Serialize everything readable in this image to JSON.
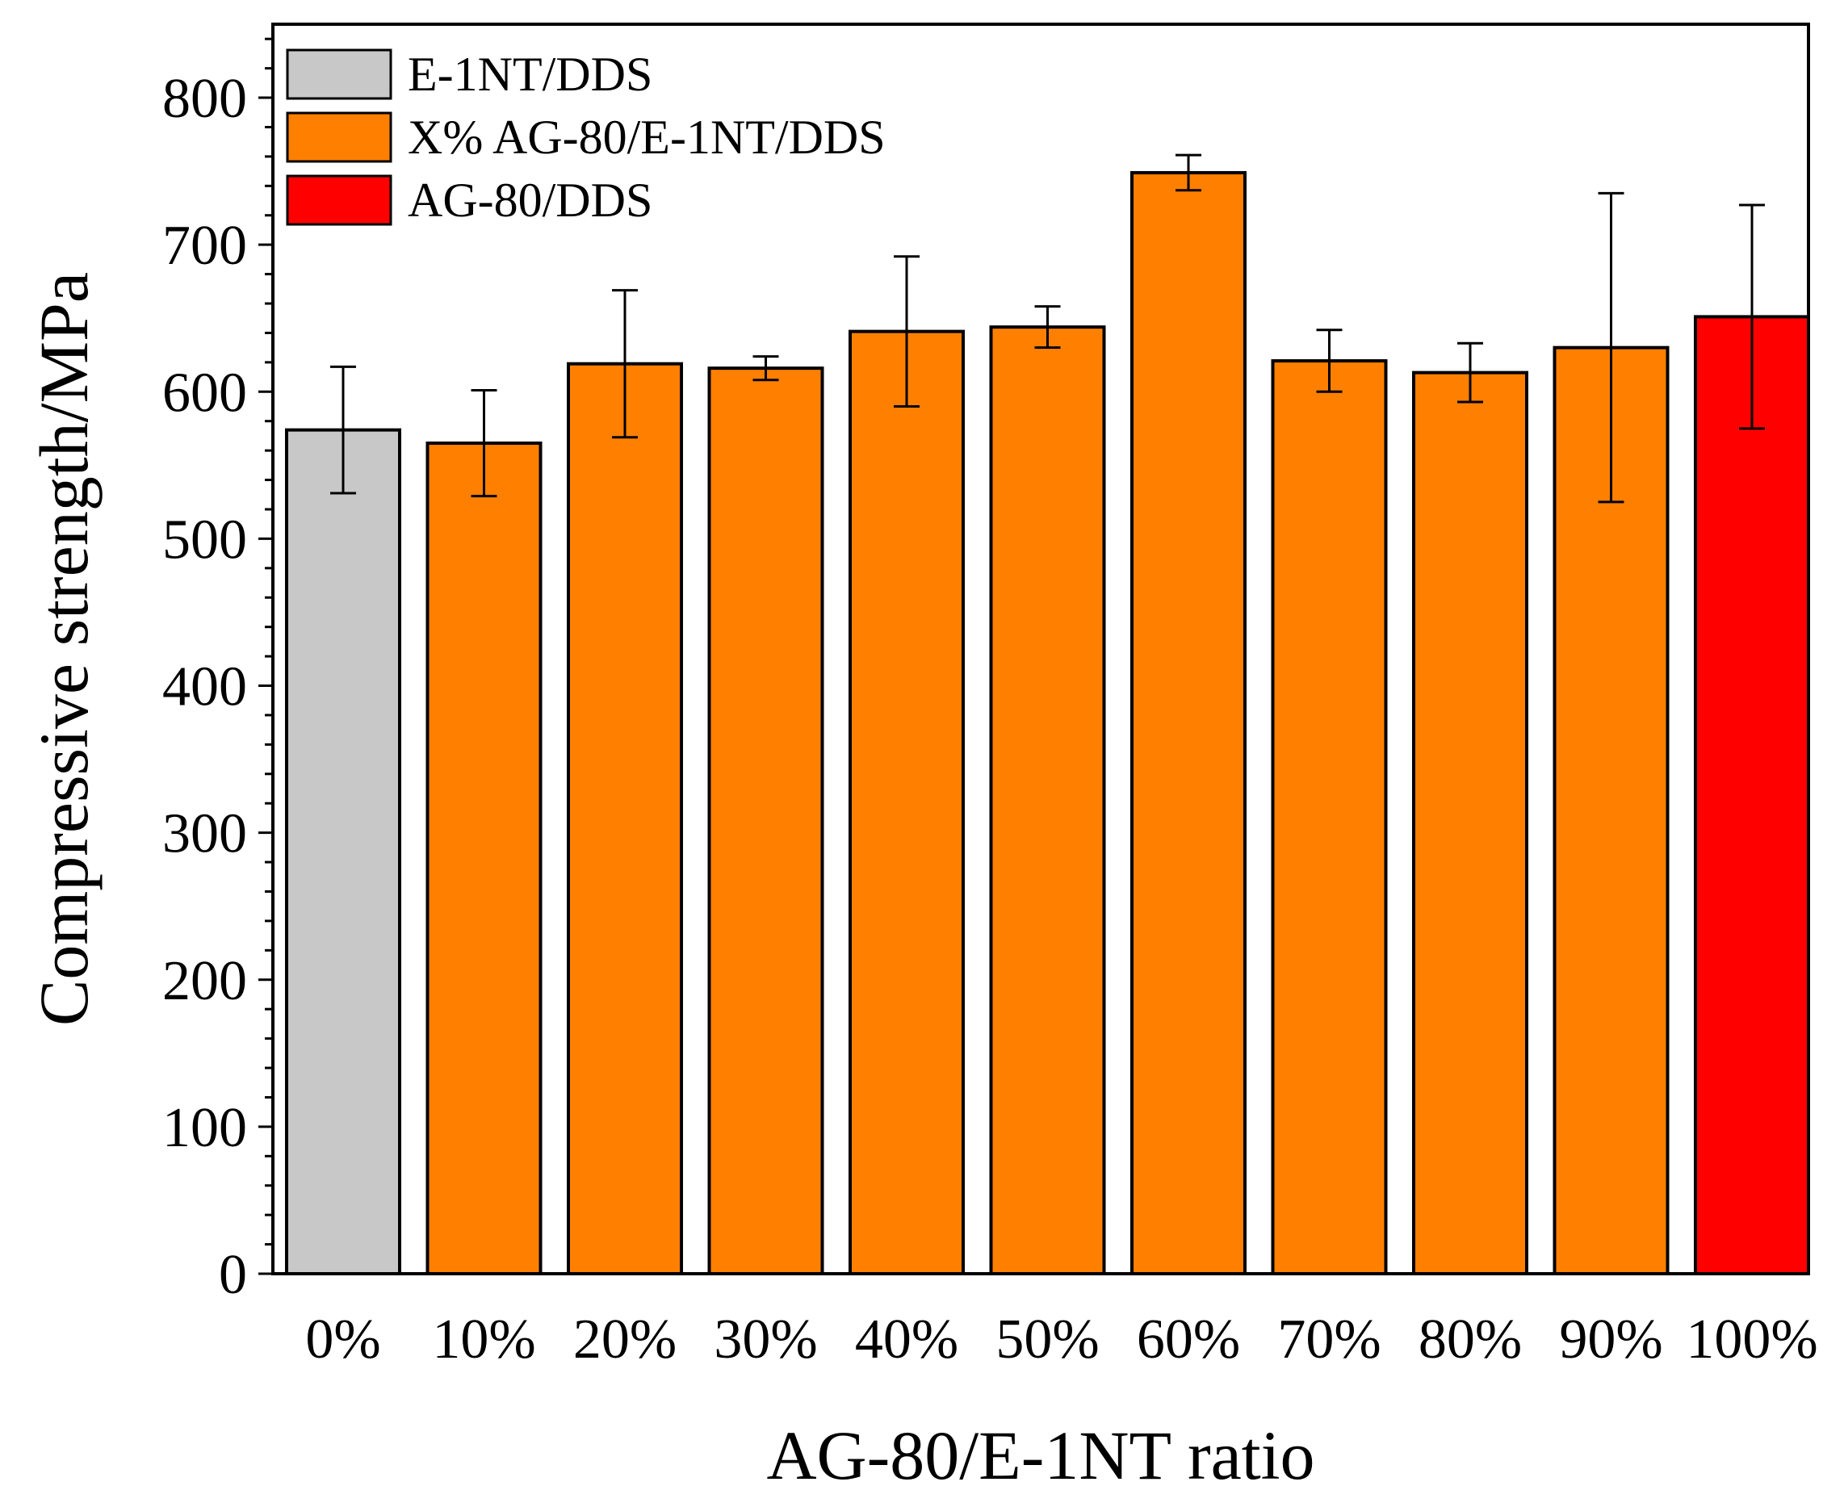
{
  "chart_data": {
    "type": "bar",
    "title": "",
    "xlabel": "AG-80/E-1NT ratio",
    "ylabel": "Compressive strength/MPa",
    "ylim": [
      0,
      850
    ],
    "yticks": [
      0,
      100,
      200,
      300,
      400,
      500,
      600,
      700,
      800
    ],
    "ytick_labels": [
      "0",
      "100",
      "200",
      "300",
      "400",
      "500",
      "600",
      "700",
      "800"
    ],
    "categories": [
      "0%",
      "10%",
      "20%",
      "30%",
      "40%",
      "50%",
      "60%",
      "70%",
      "80%",
      "90%",
      "100%"
    ],
    "values": [
      574,
      565,
      619,
      616,
      641,
      644,
      749,
      621,
      613,
      630,
      651
    ],
    "error": [
      43,
      36,
      50,
      8,
      51,
      14,
      12,
      21,
      20,
      105,
      76
    ],
    "bar_series": [
      0,
      1,
      1,
      1,
      1,
      1,
      1,
      1,
      1,
      1,
      2
    ],
    "legend_position": "top-left",
    "grid": false,
    "series": [
      {
        "name": "E-1NT/DDS",
        "color": "#c8c8c8"
      },
      {
        "name": "X% AG-80/E-1NT/DDS",
        "color": "#ff8000"
      },
      {
        "name": "AG-80/DDS",
        "color": "#ff0000"
      }
    ]
  }
}
